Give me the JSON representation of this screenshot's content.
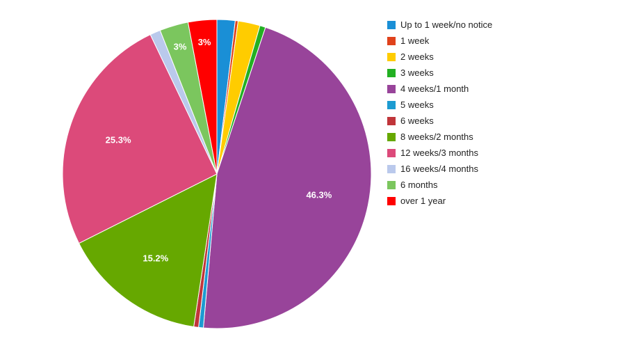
{
  "chart_data": {
    "type": "pie",
    "title": "",
    "start_angle_deg": 0,
    "legend_position": "right",
    "categories": [
      "Up to 1 week/no notice",
      "1 week",
      "2 weeks",
      "3 weeks",
      "4 weeks/1 month",
      "5 weeks",
      "6 weeks",
      "8 weeks/2 months",
      "12 weeks/3 months",
      "16 weeks/4 months",
      "6 months",
      "over 1 year"
    ],
    "values": [
      1.9,
      0.3,
      2.3,
      0.6,
      46.3,
      0.5,
      0.5,
      15.2,
      25.3,
      1.1,
      3.0,
      3.0
    ],
    "colors": [
      "#1a8fd6",
      "#e0421b",
      "#ffcc00",
      "#22b022",
      "#98449a",
      "#1c9bd1",
      "#c0353a",
      "#66a800",
      "#dc4a7a",
      "#bac9ec",
      "#7bc65e",
      "#ff0000"
    ],
    "data_labels": [
      "",
      "",
      "",
      "",
      "46.3%",
      "",
      "",
      "15.2%",
      "25.3%",
      "",
      "3%",
      "3%"
    ]
  }
}
